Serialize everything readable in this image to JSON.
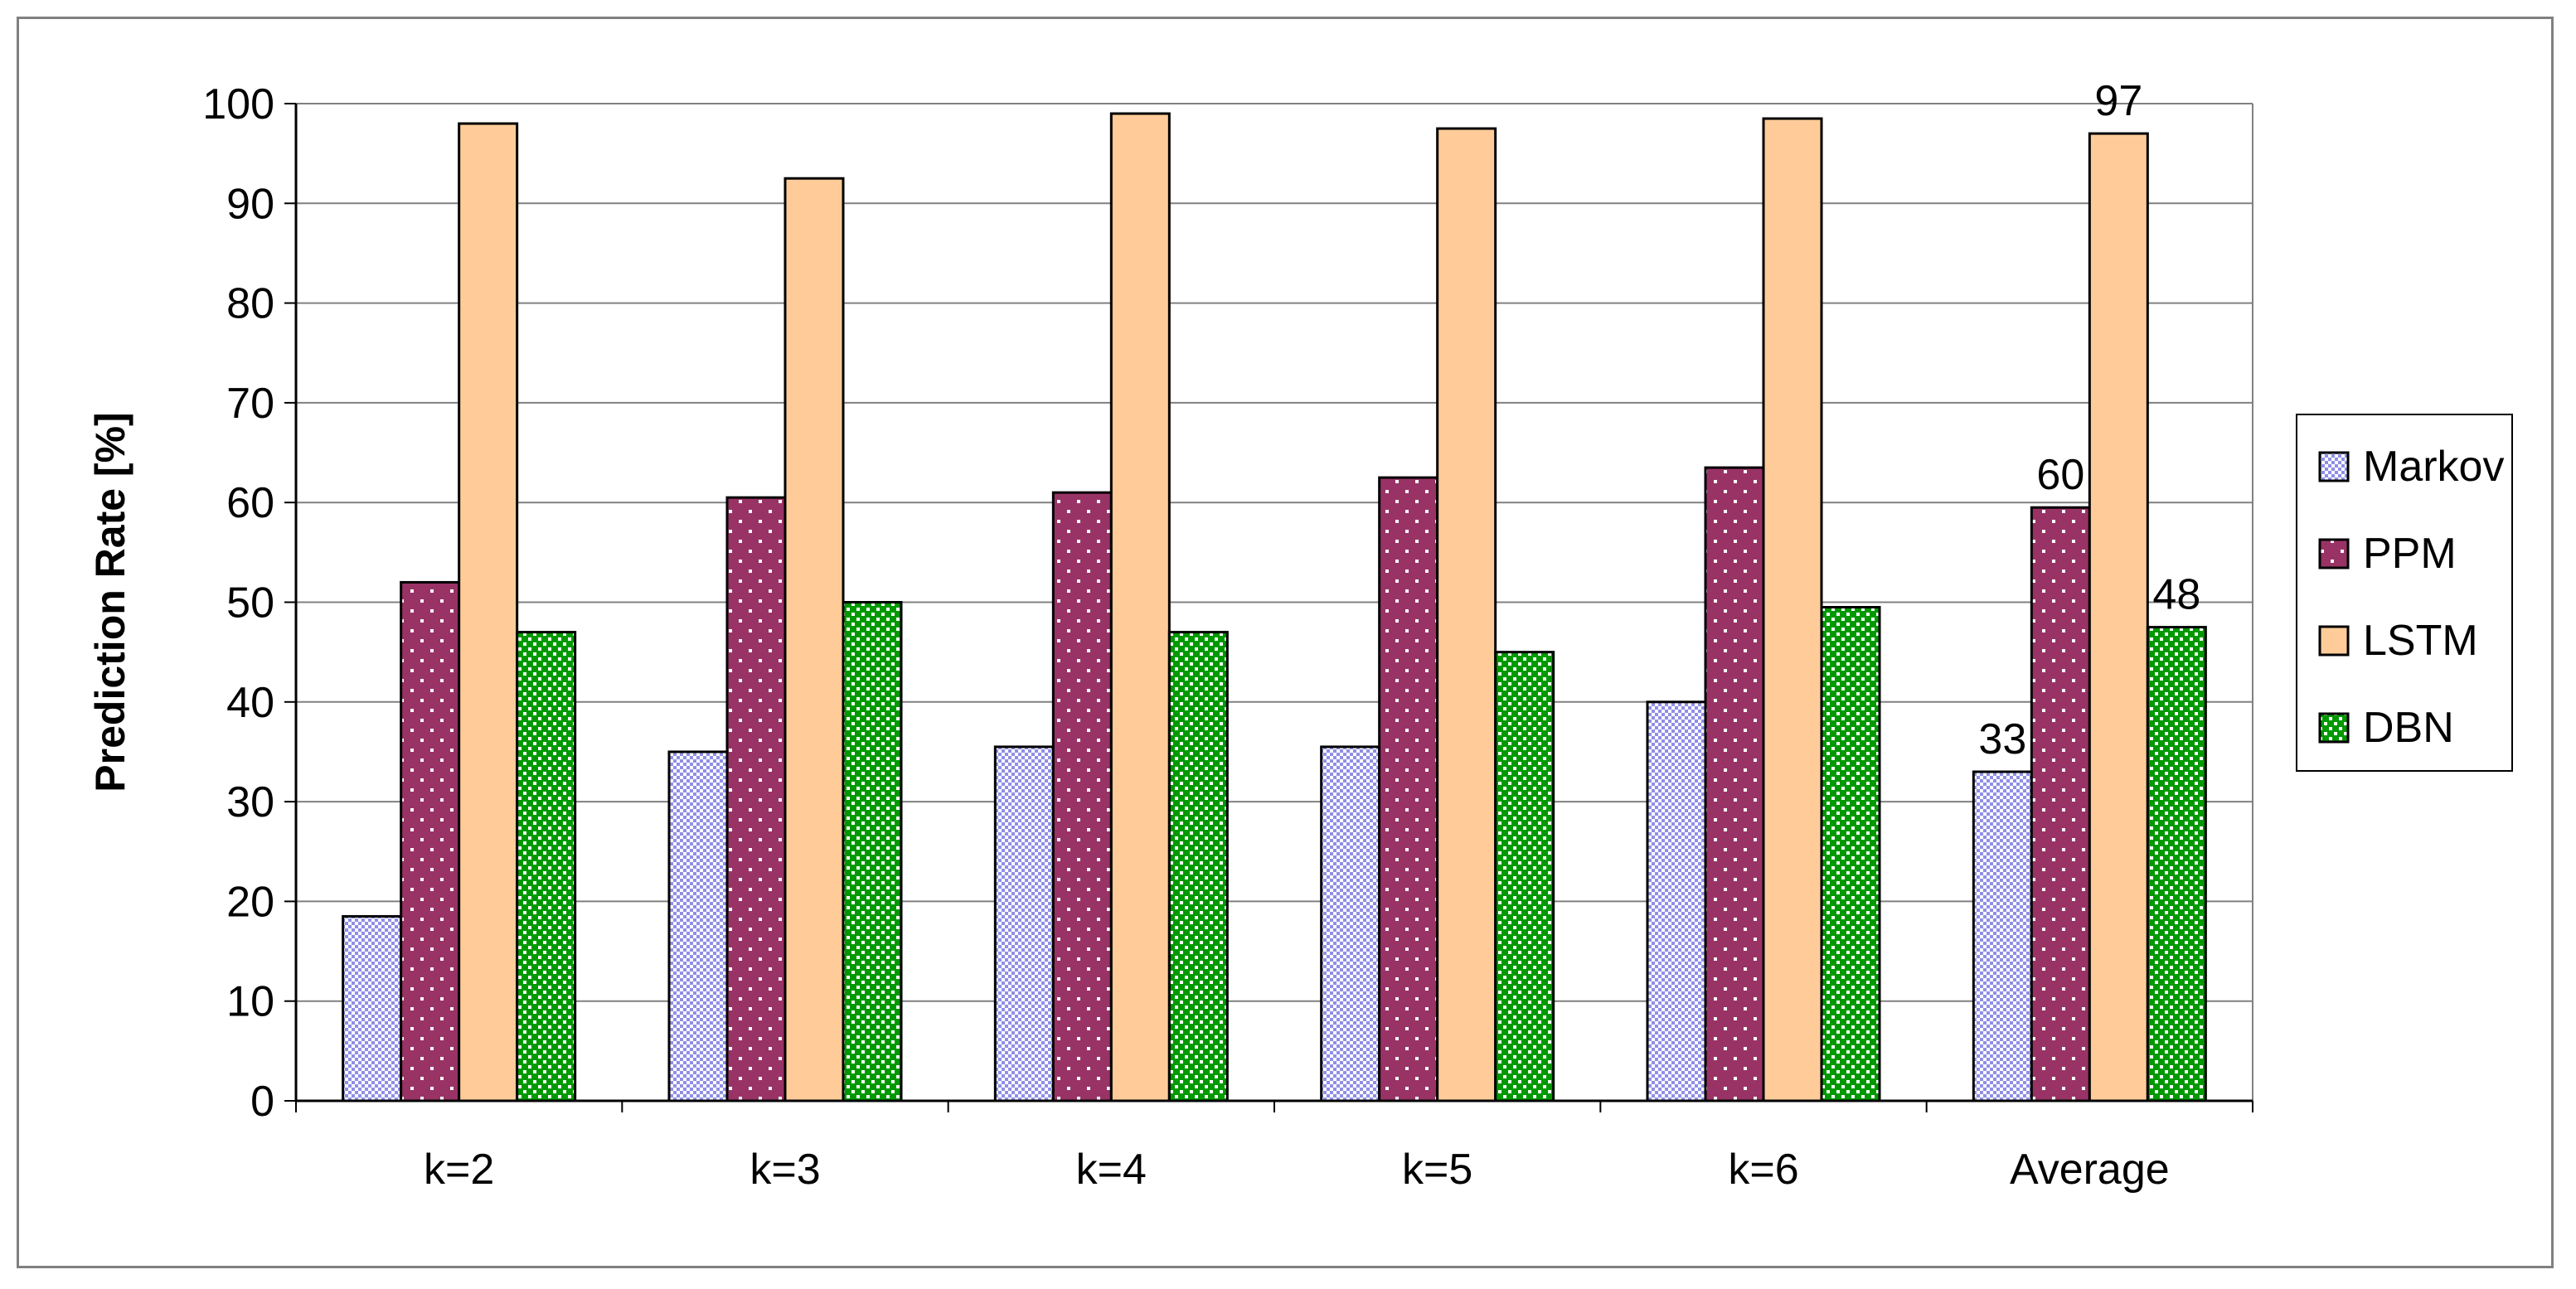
{
  "chart_data": {
    "type": "bar",
    "ylabel": "Prediction Rate [%]",
    "xlabel": "",
    "ylim": [
      0,
      100
    ],
    "yticks": [
      0,
      10,
      20,
      30,
      40,
      50,
      60,
      70,
      80,
      90,
      100
    ],
    "grid": true,
    "legend_position": "right",
    "categories": [
      "k=2",
      "k=3",
      "k=4",
      "k=5",
      "k=6",
      "Average"
    ],
    "series": [
      {
        "name": "Markov",
        "color": "#ccccff",
        "pattern": "checker",
        "values": [
          18.5,
          35,
          35.5,
          35.5,
          40,
          33
        ]
      },
      {
        "name": "PPM",
        "color": "#993366",
        "pattern": "dots",
        "values": [
          52,
          60.5,
          61,
          62.5,
          63.5,
          59.5
        ]
      },
      {
        "name": "LSTM",
        "color": "#ffcc99",
        "pattern": "solid",
        "values": [
          98,
          92.5,
          99,
          97.5,
          98.5,
          97
        ]
      },
      {
        "name": "DBN",
        "color": "#009900",
        "pattern": "checker",
        "values": [
          47,
          50,
          47,
          45,
          49.5,
          47.5
        ]
      }
    ],
    "data_labels": [
      {
        "category": "Average",
        "series": "Markov",
        "text": "33"
      },
      {
        "category": "Average",
        "series": "PPM",
        "text": "60"
      },
      {
        "category": "Average",
        "series": "LSTM",
        "text": "97"
      },
      {
        "category": "Average",
        "series": "DBN",
        "text": "48"
      }
    ]
  }
}
